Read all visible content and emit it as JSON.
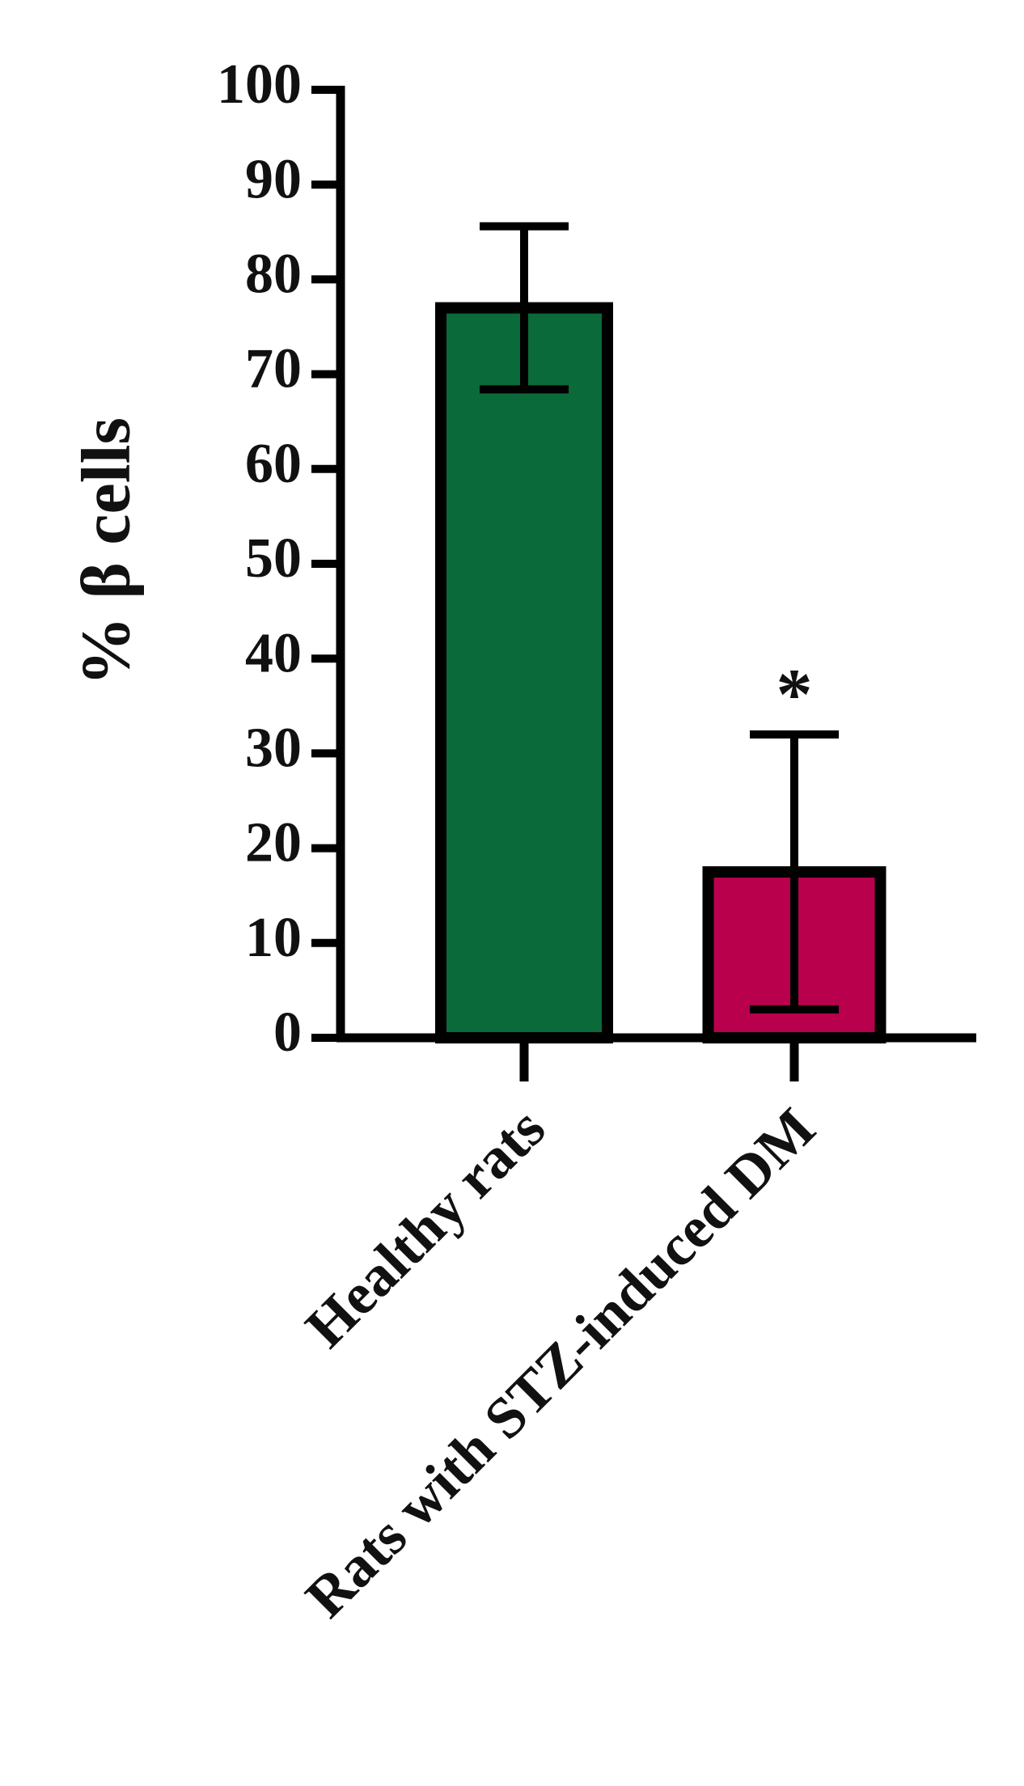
{
  "chart_data": {
    "type": "bar",
    "ylabel": "% β cells",
    "categories": [
      "Healthy rats",
      "Rats with STZ-induced DM"
    ],
    "values": [
      77,
      17.5
    ],
    "errors": [
      8.6,
      14.5
    ],
    "colors": [
      "#0a6a3a",
      "#b8004c"
    ],
    "annotations": [
      {
        "category": 1,
        "text": "*"
      }
    ],
    "ylim": [
      0,
      100
    ],
    "yticks": [
      0,
      10,
      20,
      30,
      40,
      50,
      60,
      70,
      80,
      90,
      100
    ],
    "grid": false
  }
}
